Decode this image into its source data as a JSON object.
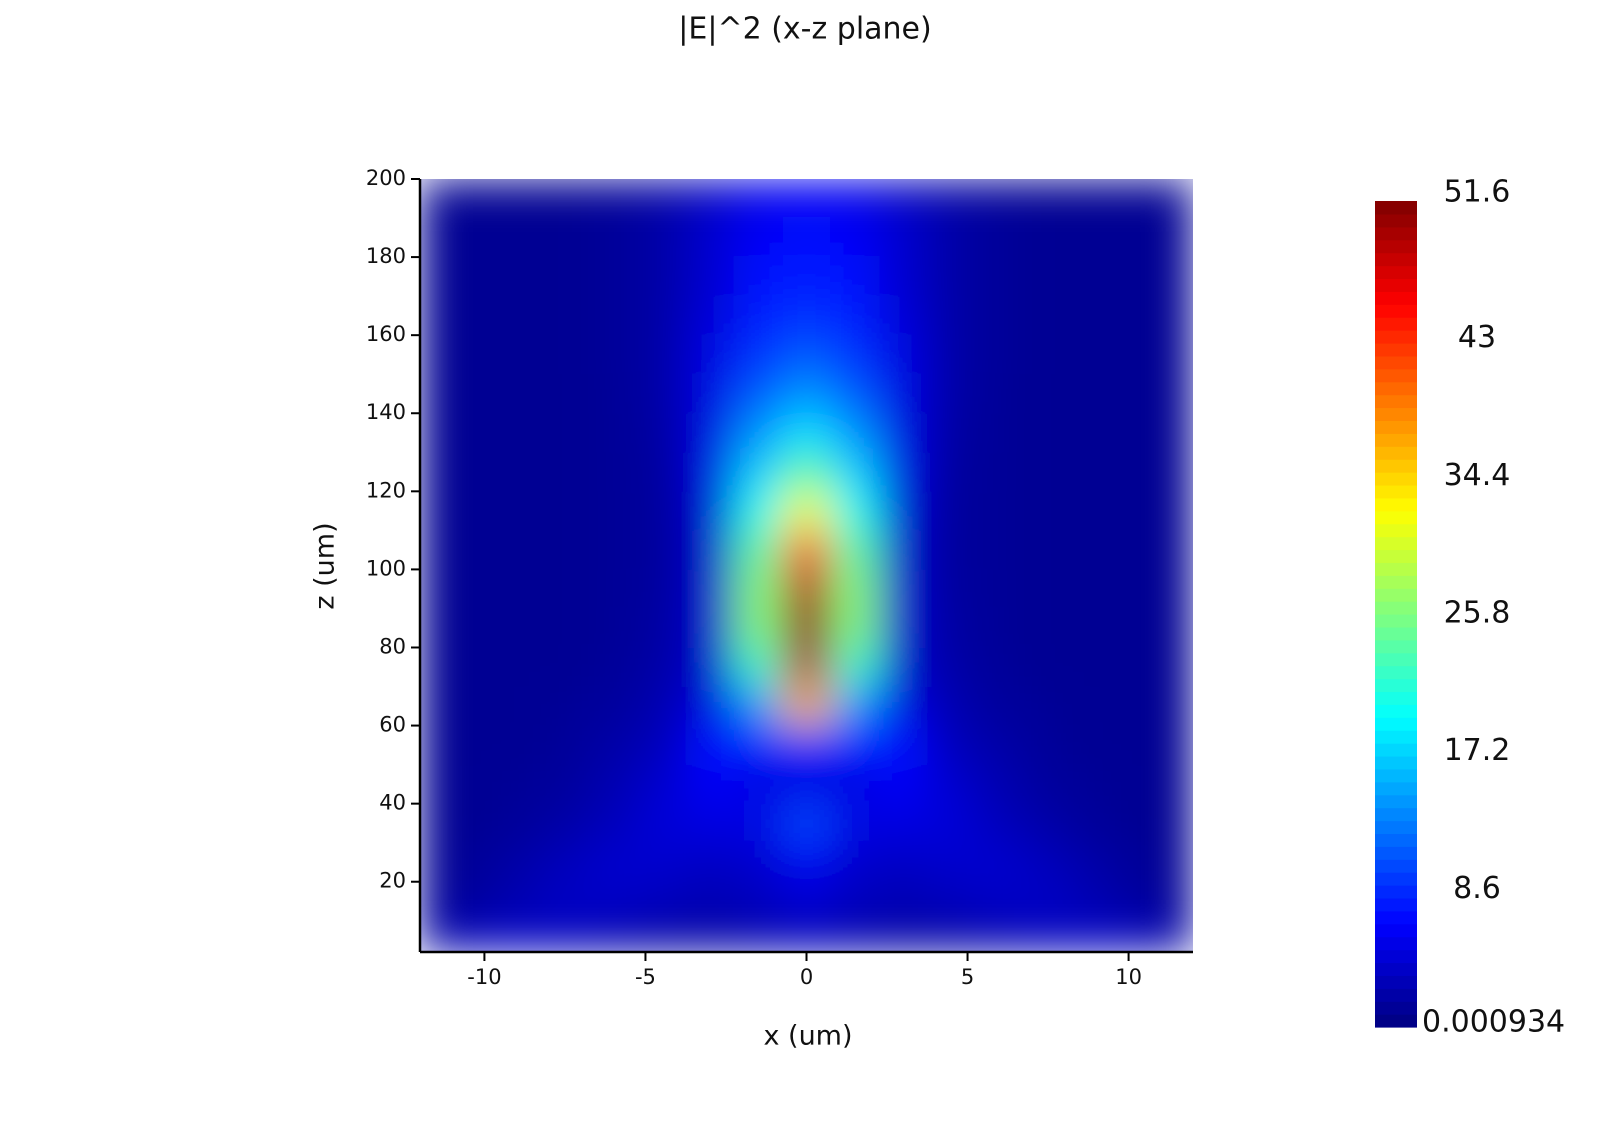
{
  "chart_data": {
    "type": "heatmap",
    "title": "|E|^2 (x-z plane)",
    "x_label": "x (um)",
    "y_label": "z (um)",
    "xlim": [
      -12,
      12
    ],
    "ylim": [
      2,
      200
    ],
    "xticks": [
      -10,
      -5,
      0,
      5,
      10
    ],
    "yticks": [
      20,
      40,
      60,
      80,
      100,
      120,
      140,
      160,
      180,
      200
    ],
    "colormap": "jet",
    "clim": [
      0.000934,
      51.6
    ],
    "cticks": [
      0.000934,
      8.6,
      17.2,
      25.8,
      34.4,
      43,
      51.6
    ],
    "x": [
      -12,
      -10.5,
      -9,
      -7.5,
      -6,
      -4.5,
      -3,
      -1.5,
      0,
      1.5,
      3,
      4.5,
      6,
      7.5,
      9,
      10.5,
      12
    ],
    "y": [
      5,
      15,
      25,
      35,
      45,
      55,
      65,
      75,
      85,
      95,
      105,
      115,
      125,
      135,
      145,
      155,
      165,
      175,
      185,
      195
    ],
    "z": [
      [
        1.5,
        3,
        3.5,
        3,
        2.5,
        2,
        2,
        2.5,
        3,
        2.5,
        2,
        2,
        2.5,
        3,
        3.5,
        3,
        1.5
      ],
      [
        1,
        1.5,
        2.5,
        3.5,
        3.5,
        3,
        2.5,
        3,
        4,
        3,
        2.5,
        3,
        3.5,
        3.5,
        2.5,
        1.5,
        1
      ],
      [
        1,
        1.2,
        2,
        3,
        4,
        4,
        3.5,
        4,
        6,
        4,
        3.5,
        4,
        4,
        3,
        2,
        1.2,
        1
      ],
      [
        1,
        1,
        1.3,
        2,
        3,
        4.5,
        5,
        5,
        10,
        5,
        5,
        4.5,
        3,
        2,
        1.3,
        1,
        1
      ],
      [
        1,
        1,
        1.2,
        1.5,
        2.5,
        4,
        6,
        5,
        5,
        5,
        6,
        4,
        2.5,
        1.5,
        1.2,
        1,
        1
      ],
      [
        1,
        1,
        1,
        1.3,
        2,
        3,
        7,
        8,
        8,
        8,
        7,
        3,
        2,
        1.3,
        1,
        1,
        1
      ],
      [
        1,
        1,
        1,
        1.2,
        1.5,
        2.5,
        5,
        14,
        36,
        14,
        5,
        2.5,
        1.5,
        1.2,
        1,
        1,
        1
      ],
      [
        1,
        1,
        1,
        1,
        1.3,
        2,
        4,
        22,
        49,
        22,
        4,
        2,
        1.3,
        1,
        1,
        1,
        1
      ],
      [
        1,
        1,
        1,
        1,
        1.2,
        1.8,
        4,
        26,
        51,
        26,
        4,
        1.8,
        1.2,
        1,
        1,
        1,
        1
      ],
      [
        1,
        1,
        1,
        1,
        1.2,
        1.6,
        4,
        26,
        49,
        26,
        4,
        1.6,
        1.2,
        1,
        1,
        1,
        1
      ],
      [
        1,
        1,
        1,
        1,
        1.2,
        1.5,
        4,
        24,
        42,
        24,
        4,
        1.5,
        1.2,
        1,
        1,
        1,
        1
      ],
      [
        1,
        1,
        1,
        1,
        1.2,
        1.5,
        4.5,
        20,
        32,
        20,
        4.5,
        1.5,
        1.2,
        1,
        1,
        1,
        1
      ],
      [
        1,
        1,
        1,
        1,
        1.2,
        1.6,
        5,
        17,
        24,
        17,
        5,
        1.6,
        1.2,
        1,
        1,
        1,
        1
      ],
      [
        1,
        1,
        1,
        1,
        1.2,
        1.8,
        5,
        14,
        18,
        14,
        5,
        1.8,
        1.2,
        1,
        1,
        1,
        1
      ],
      [
        1,
        1,
        1,
        1,
        1.2,
        2,
        5,
        11,
        14,
        11,
        5,
        2,
        1.2,
        1,
        1,
        1,
        1
      ],
      [
        1,
        1,
        1,
        1,
        1.3,
        2,
        5,
        9,
        11,
        9,
        5,
        2,
        1.3,
        1,
        1,
        1,
        1
      ],
      [
        1,
        1,
        1,
        1,
        1.3,
        2,
        4.5,
        8,
        9,
        8,
        4.5,
        2,
        1.3,
        1,
        1,
        1,
        1
      ],
      [
        1,
        1,
        1,
        1,
        1.3,
        2,
        4,
        7,
        8,
        7,
        4,
        2,
        1.3,
        1,
        1,
        1,
        1
      ],
      [
        1,
        1,
        1,
        1,
        1.3,
        2,
        4,
        6,
        7,
        6,
        4,
        2,
        1.3,
        1,
        1,
        1,
        1
      ],
      [
        1,
        1,
        1,
        1,
        1.3,
        2,
        3.5,
        5.5,
        6,
        5.5,
        3.5,
        2,
        1.3,
        1,
        1,
        1,
        1
      ]
    ]
  }
}
